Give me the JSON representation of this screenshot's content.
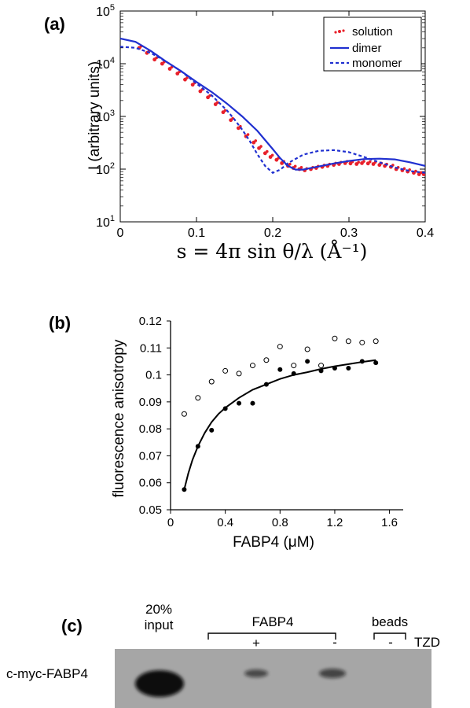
{
  "panels": {
    "a": "(a)",
    "b": "(b)",
    "c": "(c)"
  },
  "chart_data": [
    {
      "type": "line",
      "panel": "(a)",
      "xlabel": "s = 4π sin θ/λ (Å⁻¹)",
      "ylabel": "I (arbitrary units)",
      "xlim": [
        0,
        0.4
      ],
      "ylim": [
        10,
        100000
      ],
      "yscale": "log",
      "xticks": [
        "0",
        "0.1",
        "0.2",
        "0.3",
        "0.4"
      ],
      "yticks": [
        {
          "value": 10,
          "base": "10",
          "exp": "1"
        },
        {
          "value": 100,
          "base": "10",
          "exp": "2"
        },
        {
          "value": 1000,
          "base": "10",
          "exp": "3"
        },
        {
          "value": 10000,
          "base": "10",
          "exp": "4"
        },
        {
          "value": 100000,
          "base": "10",
          "exp": "5"
        }
      ],
      "legend_position": "top-right",
      "series": [
        {
          "name": "solution",
          "style": "dots",
          "color": "#e8202a",
          "x": [
            0.025,
            0.035,
            0.045,
            0.055,
            0.065,
            0.075,
            0.085,
            0.095,
            0.105,
            0.115,
            0.125,
            0.135,
            0.145,
            0.155,
            0.165,
            0.175,
            0.182,
            0.19,
            0.197,
            0.205,
            0.212,
            0.22,
            0.227,
            0.235,
            0.242,
            0.25,
            0.257,
            0.265,
            0.272,
            0.28,
            0.287,
            0.295,
            0.302,
            0.31,
            0.317,
            0.325,
            0.332,
            0.34,
            0.347,
            0.355,
            0.362,
            0.37,
            0.377,
            0.385,
            0.392,
            0.398
          ],
          "y": [
            20000,
            16000,
            12000,
            10000,
            8000,
            6500,
            5000,
            4000,
            3000,
            2300,
            1700,
            1200,
            850,
            600,
            420,
            320,
            250,
            200,
            170,
            150,
            130,
            115,
            105,
            100,
            95,
            100,
            105,
            110,
            115,
            120,
            125,
            130,
            128,
            125,
            130,
            128,
            125,
            120,
            115,
            110,
            100,
            95,
            90,
            85,
            80,
            80
          ]
        },
        {
          "name": "dimer",
          "style": "solid",
          "color": "#2030d0",
          "x": [
            0,
            0.02,
            0.04,
            0.06,
            0.08,
            0.1,
            0.12,
            0.14,
            0.16,
            0.18,
            0.2,
            0.21,
            0.22,
            0.23,
            0.24,
            0.25,
            0.26,
            0.28,
            0.3,
            0.32,
            0.34,
            0.36,
            0.38,
            0.4
          ],
          "y": [
            30000,
            26000,
            17500,
            11000,
            7200,
            4500,
            2900,
            1750,
            1000,
            530,
            240,
            160,
            115,
            98,
            98,
            105,
            112,
            128,
            143,
            155,
            158,
            153,
            135,
            115
          ]
        },
        {
          "name": "monomer",
          "style": "dashed",
          "color": "#2030d0",
          "x": [
            0,
            0.02,
            0.04,
            0.06,
            0.08,
            0.1,
            0.12,
            0.14,
            0.15,
            0.16,
            0.17,
            0.18,
            0.19,
            0.2,
            0.21,
            0.22,
            0.24,
            0.26,
            0.28,
            0.3,
            0.32,
            0.34,
            0.36,
            0.38,
            0.4
          ],
          "y": [
            21000,
            20000,
            16000,
            11000,
            7200,
            4200,
            2500,
            1300,
            870,
            560,
            340,
            190,
            115,
            85,
            98,
            130,
            188,
            222,
            230,
            210,
            170,
            135,
            108,
            92,
            85
          ]
        }
      ]
    },
    {
      "type": "scatter",
      "panel": "(b)",
      "xlabel": "FABP4 (μM)",
      "ylabel": "fluorescence anisotropy",
      "xlim": [
        0,
        1.7
      ],
      "ylim": [
        0.05,
        0.12
      ],
      "xticks": [
        "0",
        "0.4",
        "0.8",
        "1.2",
        "1.6"
      ],
      "yticks": [
        "0.05",
        "0.06",
        "0.07",
        "0.08",
        "0.09",
        "0.1",
        "0.11",
        "0.12"
      ],
      "series": [
        {
          "marker": "filled",
          "x": [
            0.1,
            0.2,
            0.3,
            0.4,
            0.5,
            0.6,
            0.7,
            0.8,
            0.9,
            1.0,
            1.1,
            1.2,
            1.3,
            1.4,
            1.5
          ],
          "y": [
            0.0575,
            0.0735,
            0.0795,
            0.0875,
            0.0895,
            0.0895,
            0.0965,
            0.102,
            0.1005,
            0.105,
            0.1015,
            0.1025,
            0.1025,
            0.105,
            0.1045
          ]
        },
        {
          "marker": "open",
          "x": [
            0.1,
            0.2,
            0.3,
            0.4,
            0.5,
            0.6,
            0.7,
            0.8,
            0.9,
            1.0,
            1.1,
            1.2,
            1.3,
            1.4,
            1.5
          ],
          "y": [
            0.0855,
            0.0915,
            0.0975,
            0.1015,
            0.1005,
            0.1035,
            0.1055,
            0.1105,
            0.1035,
            0.1095,
            0.1035,
            0.1135,
            0.1125,
            0.112,
            0.1125
          ]
        },
        {
          "style": "fit-line",
          "x": [
            0.1,
            0.13,
            0.16,
            0.2,
            0.25,
            0.3,
            0.35,
            0.4,
            0.5,
            0.6,
            0.7,
            0.8,
            0.9,
            1.0,
            1.1,
            1.2,
            1.3,
            1.4,
            1.5
          ],
          "y": [
            0.0575,
            0.0635,
            0.0685,
            0.0735,
            0.0785,
            0.0825,
            0.0855,
            0.0878,
            0.0915,
            0.0945,
            0.0965,
            0.0985,
            0.1,
            0.101,
            0.1022,
            0.1032,
            0.104,
            0.1048,
            0.1055
          ]
        }
      ]
    }
  ],
  "blot": {
    "header_input_line1": "20%",
    "header_input_line2": "input",
    "header_fabp4": "FABP4",
    "header_beads": "beads",
    "tzd_label": "TZD",
    "plus": "+",
    "minus1": "-",
    "minus2": "-",
    "row_label": "c-myc-FABP4",
    "band_intensities": [
      1.0,
      0.4,
      0.45
    ]
  }
}
